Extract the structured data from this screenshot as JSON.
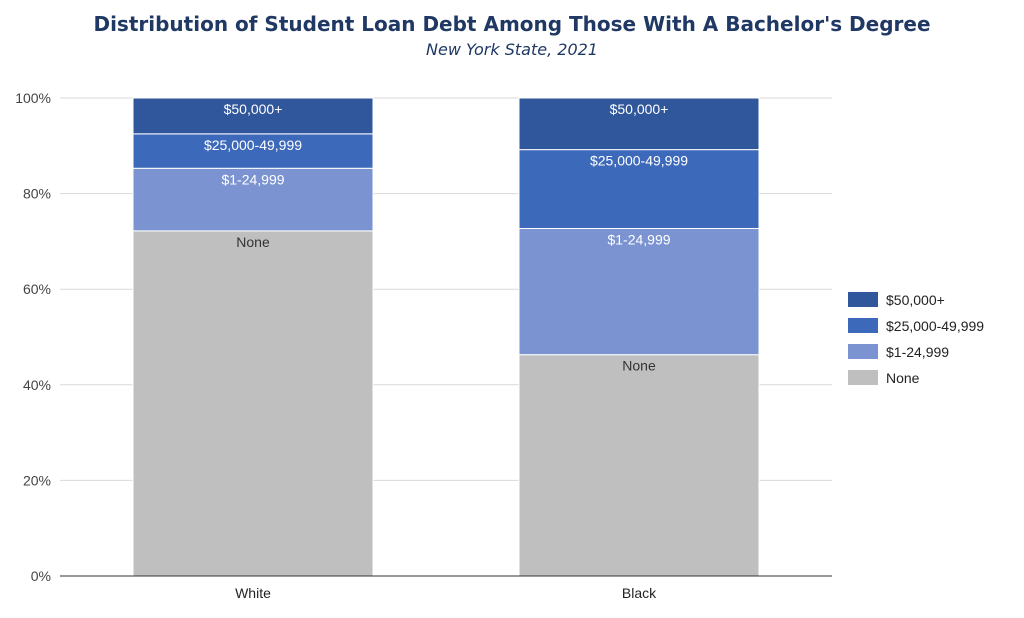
{
  "chart_data": {
    "type": "bar",
    "stacked": true,
    "title": "Distribution of Student Loan Debt Among Those With A Bachelor's Degree",
    "subtitle": "New York State, 2021",
    "categories": [
      "White",
      "Black"
    ],
    "series": [
      {
        "name": "None",
        "values": [
          72.2,
          46.3
        ],
        "color": "#bfbfbf",
        "label_color": "#333333"
      },
      {
        "name": "$1-24,999",
        "values": [
          13.1,
          26.4
        ],
        "color": "#7b93d1",
        "label_color": "#ffffff"
      },
      {
        "name": "$25,000-49,999",
        "values": [
          7.2,
          16.5
        ],
        "color": "#3d69bb",
        "label_color": "#ffffff"
      },
      {
        "name": "$50,000+",
        "values": [
          7.5,
          10.8
        ],
        "color": "#30569c",
        "label_color": "#ffffff"
      }
    ],
    "y_ticks": [
      "0%",
      "20%",
      "40%",
      "60%",
      "80%",
      "100%"
    ],
    "ylim": [
      0,
      100
    ],
    "grid": true,
    "legend_position": "right",
    "legend_order": [
      "$50,000+",
      "$25,000-49,999",
      "$1-24,999",
      "None"
    ]
  }
}
